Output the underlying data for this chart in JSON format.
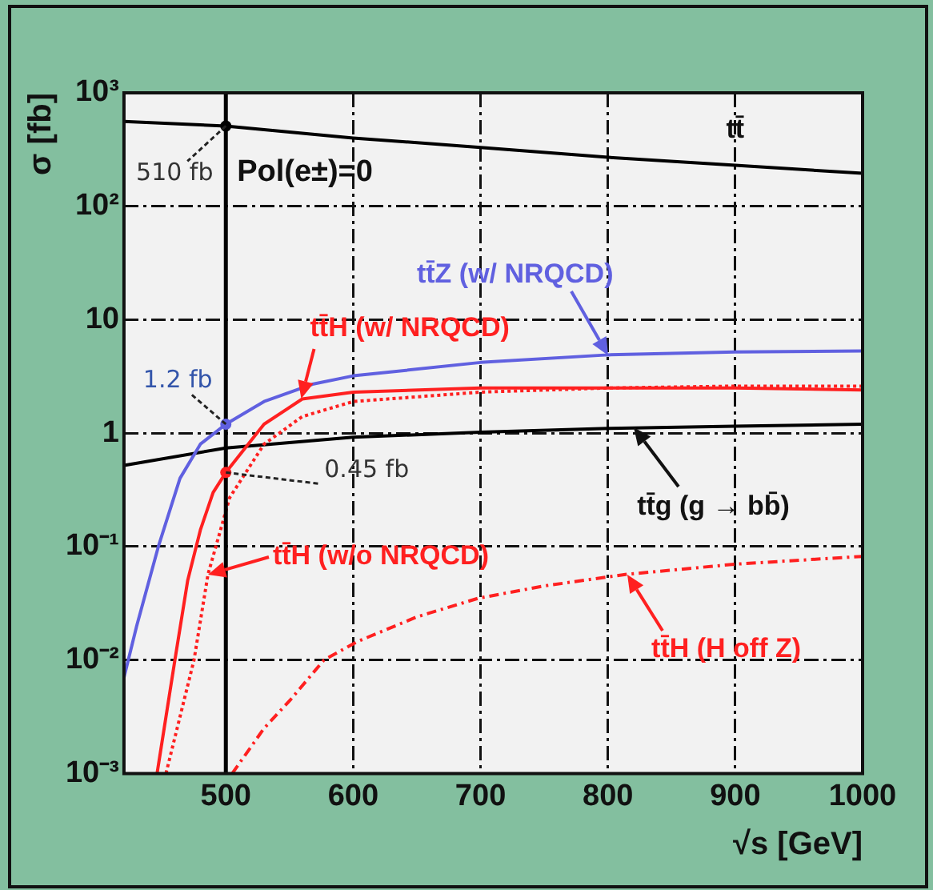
{
  "chart_data": {
    "type": "line",
    "xlabel": "√s [GeV]",
    "ylabel": "σ [fb]",
    "log": "y",
    "xlim": [
      420,
      1000
    ],
    "xticks": [
      500,
      600,
      700,
      800,
      900,
      1000
    ],
    "ylim": [
      0.001,
      1000
    ],
    "yticks": [
      {
        "value": 0.001,
        "label": "10⁻³"
      },
      {
        "value": 0.01,
        "label": "10⁻²"
      },
      {
        "value": 0.1,
        "label": "10⁻¹"
      },
      1,
      10,
      {
        "value": 100,
        "label": "10²"
      },
      {
        "value": 1000,
        "label": "10³"
      }
    ],
    "grid": true,
    "marker": "none",
    "series": [
      {
        "color": "#000000",
        "line_style": "solid",
        "x": [
          420,
          500,
          600,
          700,
          800,
          900,
          1000
        ],
        "values": [
          560,
          510,
          400,
          330,
          270,
          230,
          195
        ]
      },
      {
        "color": "#6060e0",
        "line_style": "solid",
        "x": [
          420,
          430,
          447,
          464,
          480,
          500,
          530,
          568,
          600,
          700,
          800,
          900,
          1000
        ],
        "values": [
          0.007,
          0.02,
          0.1,
          0.4,
          0.8,
          1.2,
          1.9,
          2.7,
          3.2,
          4.2,
          4.9,
          5.2,
          5.3
        ]
      },
      {
        "color": "#ff2020",
        "line_style": "solid",
        "x": [
          446,
          460,
          470,
          480,
          490,
          500,
          530,
          560,
          600,
          700,
          800,
          900,
          1000
        ],
        "values": [
          0.001,
          0.01,
          0.05,
          0.14,
          0.3,
          0.45,
          1.2,
          2.0,
          2.3,
          2.5,
          2.5,
          2.5,
          2.4
        ]
      },
      {
        "color": "#ff2020",
        "line_style": "dotted",
        "x": [
          453,
          475,
          486,
          503,
          530,
          560,
          600,
          700,
          800,
          900,
          1000
        ],
        "values": [
          0.001,
          0.01,
          0.057,
          0.27,
          0.8,
          1.4,
          1.9,
          2.3,
          2.5,
          2.6,
          2.6
        ]
      },
      {
        "color": "#ff2020",
        "line_style": "dashed",
        "x": [
          505,
          530,
          551,
          577,
          603,
          650,
          698,
          750,
          815,
          900,
          1000
        ],
        "values": [
          0.001,
          0.0025,
          0.0045,
          0.01,
          0.0145,
          0.024,
          0.035,
          0.045,
          0.057,
          0.07,
          0.082
        ]
      },
      {
        "color": "#000000",
        "line_style": "solid",
        "x": [
          420,
          500,
          600,
          700,
          800,
          900,
          1000
        ],
        "values": [
          0.52,
          0.74,
          0.92,
          1.02,
          1.1,
          1.15,
          1.2
        ]
      }
    ],
    "ref_lines": [
      {
        "axis": "x",
        "value": 500,
        "color": "#000000"
      }
    ],
    "annotations": [
      {
        "text": "510 fb",
        "x": 500,
        "y": 510
      },
      {
        "text": "1.2 fb",
        "x": 500,
        "y": 1.2
      },
      {
        "text": "0.45 fb",
        "x": 500,
        "y": 0.45
      },
      {
        "text": "tt̄",
        "x": 900,
        "y": 230
      },
      {
        "text": "tt̄Z (w/ NRQCD)",
        "x": 800,
        "y": 4.9
      },
      {
        "text": "tt̄H (w/ NRQCD)",
        "x": 559,
        "y": 2.0
      },
      {
        "text": "tt̄g (g → bb̄)",
        "x": 820,
        "y": 1.13
      },
      {
        "text": "tt̄H (w/o NRQCD)",
        "x": 486,
        "y": 0.057
      },
      {
        "text": "tt̄H (H off Z)",
        "x": 815,
        "y": 0.057
      },
      "Pol(e±)=0"
    ]
  }
}
